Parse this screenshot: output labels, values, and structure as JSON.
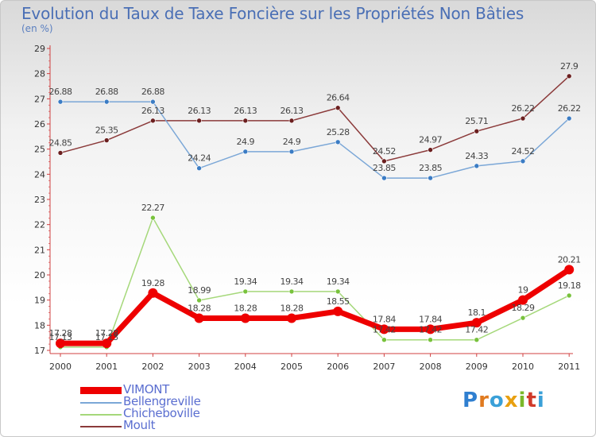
{
  "title": "Evolution du Taux de Taxe Foncière sur les Propriétés Non Bâties",
  "unit_label": "(en %)",
  "logo": {
    "text": "Proxiti",
    "letters": [
      "P",
      "r",
      "o",
      "x",
      "i",
      "t",
      "i"
    ],
    "colors": [
      "#2f7fd0",
      "#e07a1f",
      "#3aa0d8",
      "#e8a010",
      "#7ab82a",
      "#d03a2a",
      "#3aa0d8"
    ]
  },
  "chart_data": {
    "type": "line",
    "title": "Evolution du Taux de Taxe Foncière sur les Propriétés Non Bâties",
    "ylabel": "(en %)",
    "xlabel": "",
    "categories": [
      "2000",
      "2001",
      "2002",
      "2003",
      "2004",
      "2005",
      "2006",
      "2007",
      "2008",
      "2009",
      "2010",
      "2011"
    ],
    "ylim": [
      17,
      29
    ],
    "yticks": [
      17,
      18,
      19,
      20,
      21,
      22,
      23,
      24,
      25,
      26,
      27,
      28,
      29
    ],
    "series": [
      {
        "name": "VIMONT",
        "color": "#ee0000",
        "marker": "#ee0000",
        "width": 7,
        "labelColor": "#444444",
        "values": [
          17.28,
          17.28,
          19.28,
          18.28,
          18.28,
          18.28,
          18.55,
          17.84,
          17.84,
          18.1,
          19,
          20.21
        ],
        "labels": [
          "17.28",
          "17.28",
          "19.28",
          "18.28",
          "18.28",
          "18.28",
          "18.55",
          "17.84",
          "17.84",
          "18.1",
          "19",
          "20.21"
        ]
      },
      {
        "name": "Bellengreville",
        "color": "#7ba7d7",
        "marker": "#3b7cc4",
        "width": 1.5,
        "labelColor": "#444444",
        "values": [
          26.88,
          26.88,
          26.88,
          24.24,
          24.9,
          24.9,
          25.28,
          23.85,
          23.85,
          24.33,
          24.52,
          26.22
        ],
        "labels": [
          "26.88",
          "26.88",
          "26.88",
          "24.24",
          "24.9",
          "24.9",
          "25.28",
          "23.85",
          "23.85",
          "24.33",
          "24.52",
          "26.22"
        ]
      },
      {
        "name": "Chicheboville",
        "color": "#a5d87a",
        "marker": "#78c23c",
        "width": 1.5,
        "labelColor": "#444444",
        "values": [
          17.13,
          17.13,
          22.27,
          18.99,
          19.34,
          19.34,
          19.34,
          17.42,
          17.42,
          17.42,
          18.29,
          19.18
        ],
        "labels": [
          "17.13",
          "17.13",
          "22.27",
          "18.99",
          "19.34",
          "19.34",
          "19.34",
          "17.42",
          "17.42",
          "17.42",
          "18.29",
          "19.18"
        ]
      },
      {
        "name": "Moult",
        "color": "#8b3a3a",
        "marker": "#6b1f1f",
        "width": 1.5,
        "labelColor": "#444444",
        "values": [
          24.85,
          25.35,
          26.13,
          26.13,
          26.13,
          26.13,
          26.64,
          24.52,
          24.97,
          25.71,
          26.22,
          27.9
        ],
        "labels": [
          "24.85",
          "25.35",
          "26.13",
          "26.13",
          "26.13",
          "26.13",
          "26.64",
          "24.52",
          "24.97",
          "25.71",
          "26.22",
          "27.9"
        ]
      }
    ],
    "grid": false,
    "legend": "bottom-left"
  }
}
